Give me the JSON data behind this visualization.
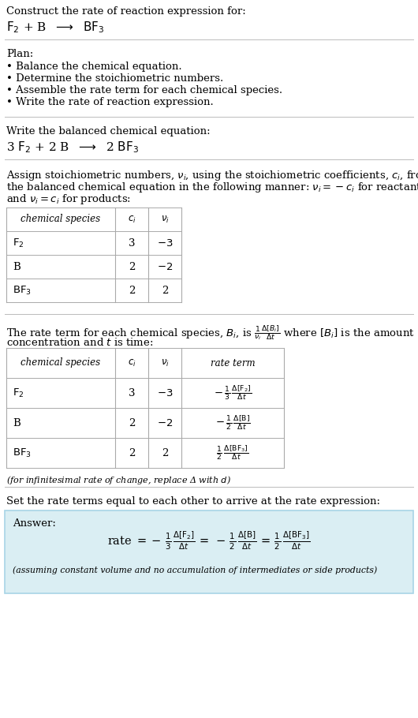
{
  "bg_color": "#ffffff",
  "text_color": "#000000",
  "answer_bg": "#daeef3",
  "answer_border": "#a8d4e6",
  "line_color": "#bbbbbb",
  "table_line_color": "#aaaaaa",
  "title": "Construct the rate of reaction expression for:",
  "plan_header": "Plan:",
  "plan_items": [
    "• Balance the chemical equation.",
    "• Determine the stoichiometric numbers.",
    "• Assemble the rate term for each chemical species.",
    "• Write the rate of reaction expression."
  ],
  "balanced_header": "Write the balanced chemical equation:",
  "stoich_lines": [
    "Assign stoichiometric numbers, $\\nu_i$, using the stoichiometric coefficients, $c_i$, from",
    "the balanced chemical equation in the following manner: $\\nu_i = -c_i$ for reactants",
    "and $\\nu_i = c_i$ for products:"
  ],
  "rate_line1": "The rate term for each chemical species, $B_i$, is $\\frac{1}{\\nu_i}\\frac{\\Delta[B_i]}{\\Delta t}$ where $[B_i]$ is the amount",
  "rate_line2": "concentration and $t$ is time:",
  "infinitesimal_note": "(for infinitesimal rate of change, replace Δ with $d$)",
  "rate_expr_header": "Set the rate terms equal to each other to arrive at the rate expression:",
  "answer_label": "Answer:",
  "answer_note": "(assuming constant volume and no accumulation of intermediates or side products)"
}
